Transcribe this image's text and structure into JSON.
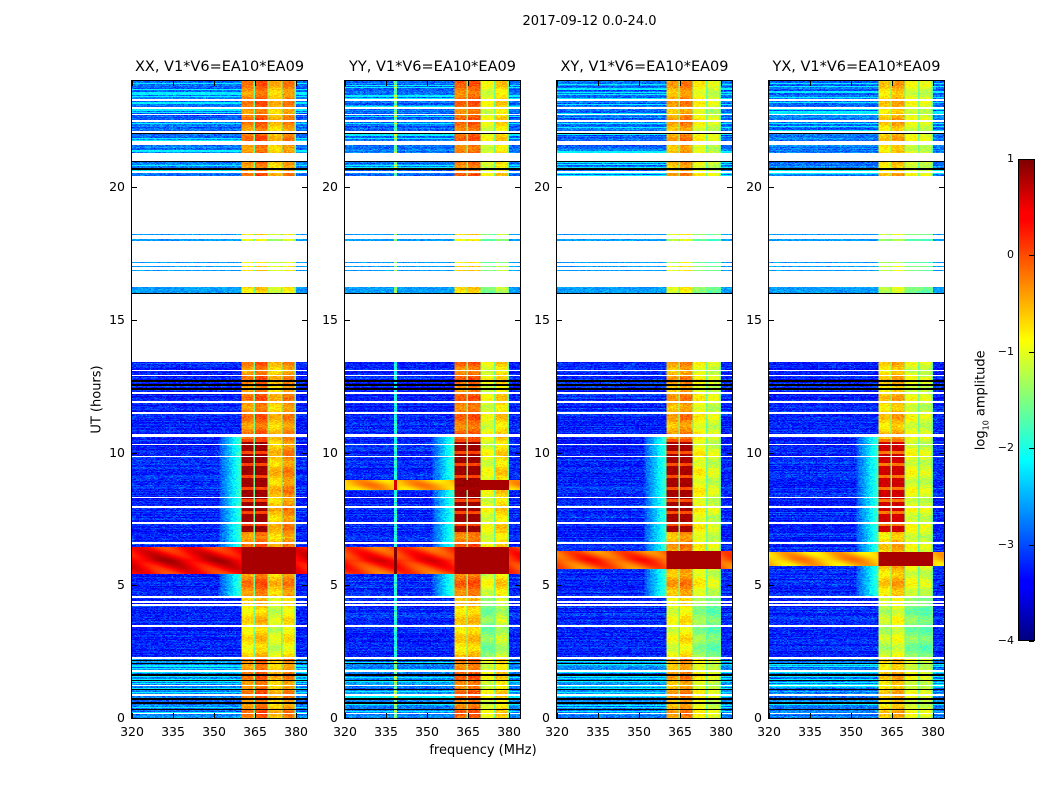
{
  "chart_data": {
    "type": "heatmap",
    "title": "2017-09-12 0.0-24.0",
    "xlabel": "frequency (MHz)",
    "ylabel": "UT (hours)",
    "xlim": [
      320,
      384
    ],
    "ylim": [
      0,
      24
    ],
    "xticks": [
      320,
      335,
      350,
      365,
      380
    ],
    "yticks": [
      0,
      5,
      10,
      15,
      20
    ],
    "panels": [
      {
        "title": "XX, V1*V6=EA10*EA09",
        "rfi_block_levels": [
          -0.3,
          -0.1,
          -0.6,
          -0.3
        ],
        "broadband": [
          [
            5.4,
            6.45,
            0.6
          ]
        ],
        "strong_rfi": 0.85
      },
      {
        "title": "YY, V1*V6=EA10*EA09",
        "rfi_block_levels": [
          -0.2,
          -0.1,
          -1.0,
          -0.7
        ],
        "broadband": [
          [
            5.4,
            6.45,
            0.35
          ],
          [
            8.6,
            8.95,
            -0.4
          ]
        ],
        "strong_rfi": 0.85
      },
      {
        "title": "XY, V1*V6=EA10*EA09",
        "rfi_block_levels": [
          -0.5,
          -0.3,
          -0.9,
          -1.1
        ],
        "broadband": [
          [
            5.6,
            6.3,
            0.1
          ]
        ],
        "strong_rfi": 0.8
      },
      {
        "title": "YX, V1*V6=EA10*EA09",
        "rfi_block_levels": [
          -0.7,
          -0.5,
          -1.0,
          -1.1
        ],
        "broadband": [
          [
            5.7,
            6.25,
            -0.4
          ]
        ],
        "strong_rfi": 0.6
      }
    ],
    "rfi_band_mhz": [
      360,
      380
    ],
    "valid_ut_intervals": [
      [
        0,
        2.2
      ],
      [
        2.3,
        6.55
      ],
      [
        6.62,
        10.6
      ],
      [
        10.68,
        13.4
      ],
      [
        15.98,
        16.25
      ],
      [
        16.85,
        16.9
      ],
      [
        17.0,
        17.05
      ],
      [
        17.15,
        17.2
      ],
      [
        18.0,
        18.05
      ],
      [
        18.2,
        18.25
      ],
      [
        20.45,
        20.55
      ],
      [
        20.62,
        21.0
      ],
      [
        21.3,
        21.6
      ],
      [
        21.75,
        22.05
      ],
      [
        22.12,
        22.95
      ],
      [
        23.05,
        24
      ]
    ],
    "colorbar": {
      "label_prefix": "log",
      "label_sub": "10",
      "label_suffix": " amplitude",
      "range": [
        -4,
        1
      ],
      "ticks": [
        "1",
        "0",
        "−1",
        "−2",
        "−3",
        "−4"
      ],
      "colormap": "jet"
    }
  }
}
